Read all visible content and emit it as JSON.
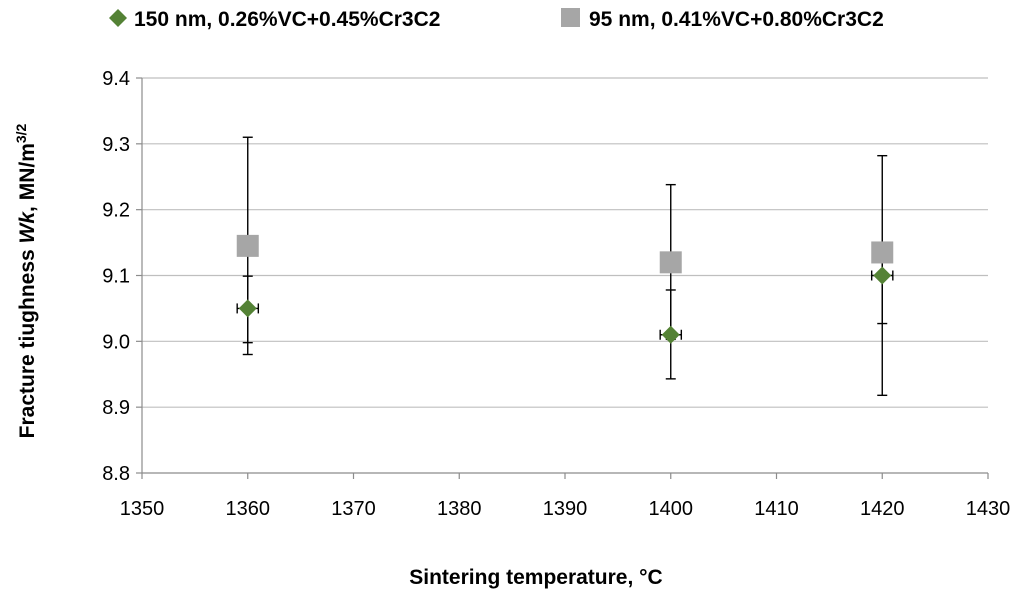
{
  "chart_data": {
    "type": "scatter",
    "xlabel": "Sintering temperature, °C",
    "ylabel_parts": [
      "Fracture tiughness ",
      "Wk",
      ", MN/m",
      "3/2"
    ],
    "xlim": [
      1350,
      1430
    ],
    "ylim": [
      8.8,
      9.4
    ],
    "x_ticks": [
      "1350",
      "1360",
      "1370",
      "1380",
      "1390",
      "1400",
      "1410",
      "1420",
      "1430"
    ],
    "y_ticks": [
      "8.8",
      "8.9",
      "9.0",
      "9.1",
      "9.2",
      "9.3",
      "9.4"
    ],
    "grid": "horizontal",
    "legend_position": "top",
    "series": [
      {
        "name": "150 nm, 0.26%VC+0.45%Cr3C2",
        "marker": "diamond",
        "color": "#548235",
        "points": [
          {
            "x": 1360,
            "y": 9.05,
            "y_low": 8.998,
            "y_high": 9.099,
            "x_err": 1
          },
          {
            "x": 1400,
            "y": 9.01,
            "y_low": 8.943,
            "y_high": 9.078,
            "x_err": 1
          },
          {
            "x": 1420,
            "y": 9.1,
            "y_low": 9.027,
            "y_high": 9.145,
            "x_err": 1
          }
        ]
      },
      {
        "name": "95 nm, 0.41%VC+0.80%Cr3C2",
        "marker": "square",
        "color": "#a6a6a6",
        "points": [
          {
            "x": 1360,
            "y": 9.145,
            "y_low": 8.98,
            "y_high": 9.31
          },
          {
            "x": 1400,
            "y": 9.12,
            "y_low": 9.003,
            "y_high": 9.238
          },
          {
            "x": 1420,
            "y": 9.135,
            "y_low": 8.918,
            "y_high": 9.282
          }
        ]
      }
    ]
  }
}
